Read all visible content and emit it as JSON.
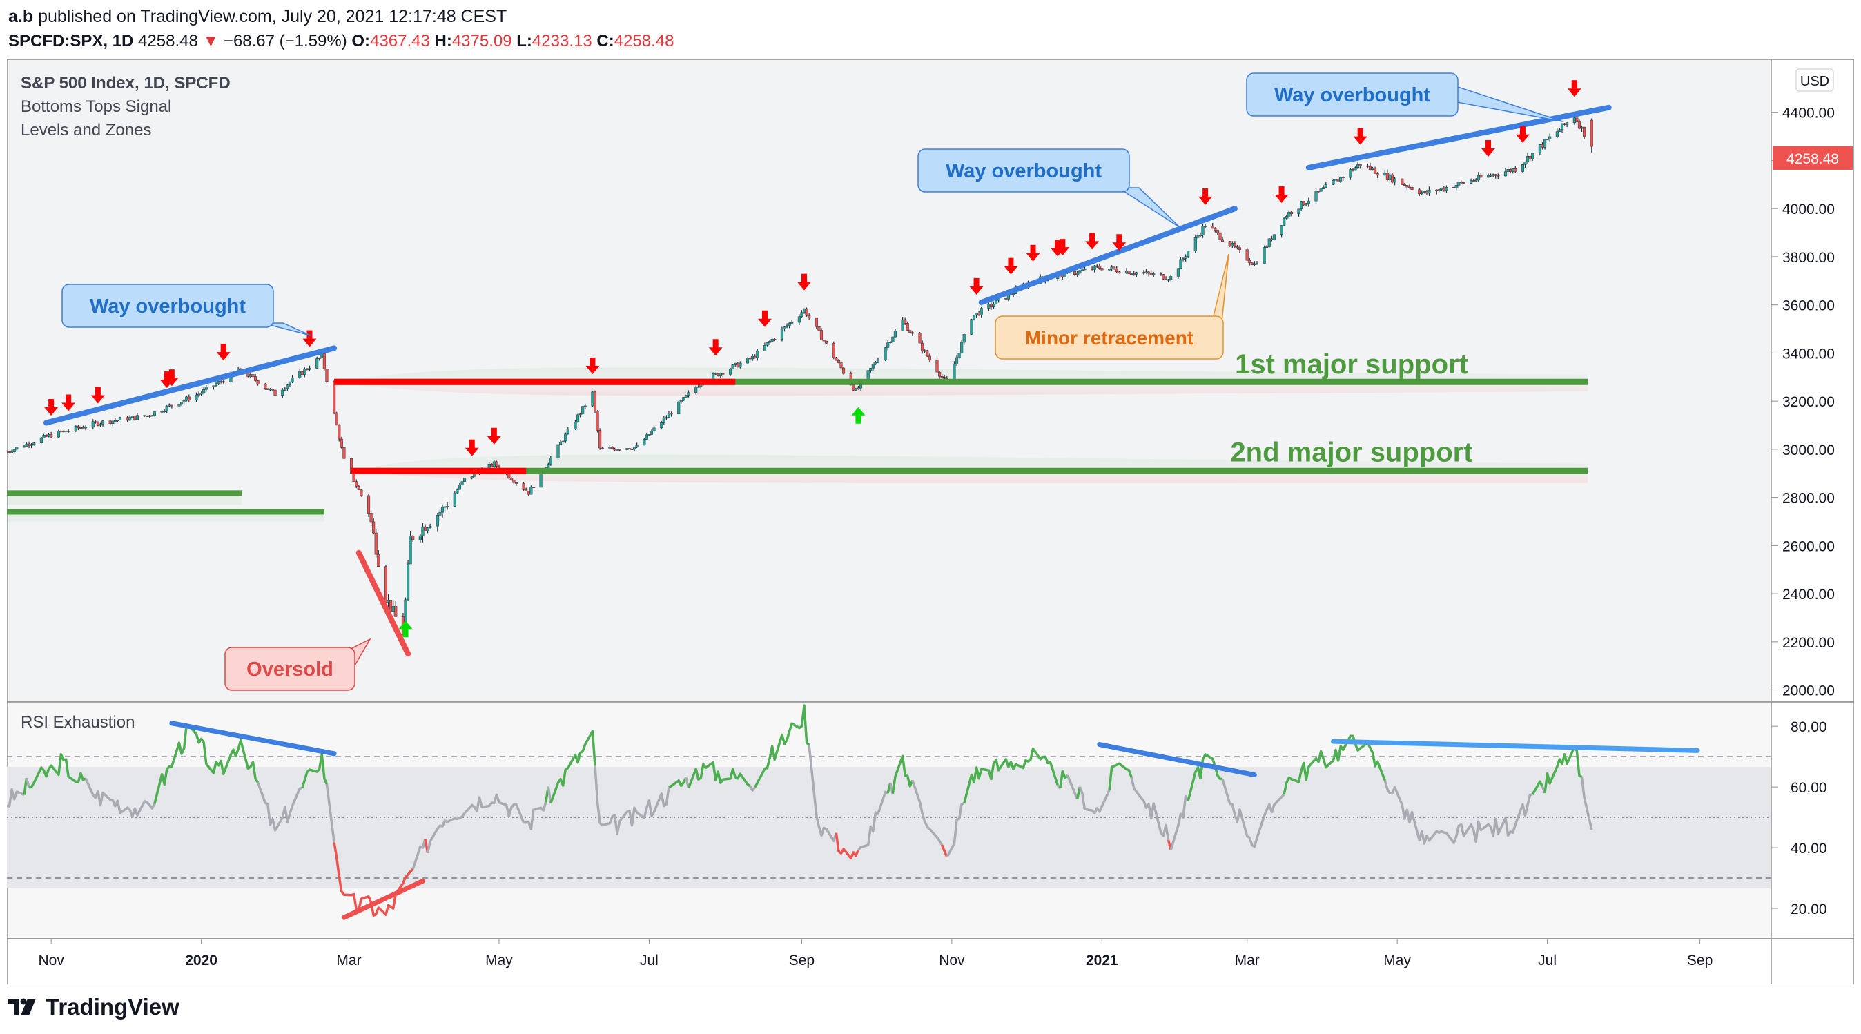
{
  "header": {
    "publisher": "a.b",
    "published_text": "published on TradingView.com, July 20, 2021 12:17:48 CEST",
    "symbol_interval": "SPCFD:SPX, 1D",
    "last_price": "4258.48",
    "change_arrow": "▼",
    "change": "−68.67 (−1.59%)",
    "open_label": "O:",
    "open": "4367.43",
    "high_label": "H:",
    "high": "4375.09",
    "low_label": "L:",
    "low": "4233.13",
    "close_label": "C:",
    "close": "4258.48"
  },
  "legend": {
    "main_title": "S&P 500 Index, 1D, SPCFD",
    "indicators": [
      "Bottoms Tops Signal",
      "Levels and Zones"
    ],
    "rsi_title": "RSI Exhaustion"
  },
  "currency_badge": "USD",
  "last_price_label": "4258.48",
  "footer": {
    "brand": "TradingView"
  },
  "colors": {
    "up": "#26a69a",
    "down": "#ef5350",
    "support": "#4e9a3f",
    "resistance": "#ff0000",
    "overbought_line": "#3c7fe0",
    "oversold_line": "#ef4e4e",
    "rsi_green": "#4caf50",
    "rsi_red": "#ef5350",
    "rsi_grey": "#a9abb2",
    "price_label": "#ef5350"
  },
  "chart_data": [
    {
      "type": "candlestick",
      "title": "S&P 500 Index, 1D, SPCFD",
      "x_ticks": [
        "Nov",
        "2020",
        "Mar",
        "May",
        "Jul",
        "Sep",
        "Nov",
        "2021",
        "Mar",
        "May",
        "Jul",
        "Sep"
      ],
      "y_ticks": [
        2000,
        2200,
        2400,
        2600,
        2800,
        3000,
        3200,
        3400,
        3600,
        3800,
        4000,
        4200,
        4400
      ],
      "ylim": [
        1950,
        4620
      ],
      "x_range": [
        "2019-10-14",
        "2021-09-30"
      ],
      "series": [
        {
          "approx_close": [
            [
              "2019-10-14",
              2990
            ],
            [
              "2019-11-01",
              3060
            ],
            [
              "2019-11-20",
              3110
            ],
            [
              "2019-12-10",
              3140
            ],
            [
              "2019-12-31",
              3230
            ],
            [
              "2020-01-17",
              3330
            ],
            [
              "2020-01-31",
              3230
            ],
            [
              "2020-02-19",
              3386
            ],
            [
              "2020-02-28",
              2954
            ],
            [
              "2020-03-09",
              2746
            ],
            [
              "2020-03-16",
              2386
            ],
            [
              "2020-03-23",
              2237
            ],
            [
              "2020-03-26",
              2630
            ],
            [
              "2020-04-08",
              2750
            ],
            [
              "2020-04-17",
              2875
            ],
            [
              "2020-04-29",
              2940
            ],
            [
              "2020-05-13",
              2820
            ],
            [
              "2020-06-08",
              3232
            ],
            [
              "2020-06-11",
              3000
            ],
            [
              "2020-06-26",
              3010
            ],
            [
              "2020-07-22",
              3280
            ],
            [
              "2020-08-12",
              3380
            ],
            [
              "2020-09-02",
              3580
            ],
            [
              "2020-09-23",
              3240
            ],
            [
              "2020-10-12",
              3535
            ],
            [
              "2020-10-30",
              3270
            ],
            [
              "2020-11-09",
              3550
            ],
            [
              "2020-12-04",
              3700
            ],
            [
              "2020-12-31",
              3756
            ],
            [
              "2021-01-29",
              3714
            ],
            [
              "2021-02-12",
              3935
            ],
            [
              "2021-03-04",
              3768
            ],
            [
              "2021-03-17",
              3975
            ],
            [
              "2021-04-16",
              4185
            ],
            [
              "2021-05-12",
              4063
            ],
            [
              "2021-06-18",
              4166
            ],
            [
              "2021-07-12",
              4384
            ],
            [
              "2021-07-19",
              4258
            ]
          ]
        }
      ],
      "last_candle": {
        "open": 4367.43,
        "high": 4375.09,
        "low": 4233.13,
        "close": 4258.48
      },
      "levels": [
        {
          "name": "1st major support",
          "value": 3280
        },
        {
          "name": "2nd major support",
          "value": 2910
        }
      ],
      "annotations": [
        {
          "text": "Way overbought"
        },
        {
          "text": "Way overbought"
        },
        {
          "text": "Way overbought"
        },
        {
          "text": "Minor retracement"
        },
        {
          "text": "Oversold"
        },
        {
          "text": "1st major support"
        },
        {
          "text": "2nd major support"
        }
      ],
      "sell_signals": [
        "2019-11-01",
        "2019-11-08",
        "2019-11-20",
        "2019-12-18",
        "2019-12-20",
        "2020-01-10",
        "2020-02-14",
        "2020-04-20",
        "2020-04-29",
        "2020-06-08",
        "2020-07-28",
        "2020-08-17",
        "2020-09-02",
        "2020-11-11",
        "2020-11-25",
        "2020-12-04",
        "2020-12-14",
        "2020-12-16",
        "2020-12-28",
        "2021-01-08",
        "2021-02-12",
        "2021-03-15",
        "2021-04-16",
        "2021-06-07",
        "2021-06-21",
        "2021-07-12"
      ],
      "buy_signals": [
        "2020-03-24",
        "2020-09-24"
      ],
      "grid": false
    },
    {
      "type": "line",
      "title": "RSI Exhaustion",
      "y_ticks": [
        20,
        40,
        60,
        80
      ],
      "ylim": [
        10,
        88
      ],
      "bands": [
        30,
        50,
        70
      ],
      "x_ticks": [
        "Nov",
        "2020",
        "Mar",
        "May",
        "Jul",
        "Sep",
        "Nov",
        "2021",
        "Mar",
        "May",
        "Jul",
        "Sep"
      ],
      "series": [
        {
          "approx_values": [
            [
              "2019-10-14",
              55
            ],
            [
              "2019-11-05",
              68
            ],
            [
              "2019-11-20",
              57
            ],
            [
              "2019-12-10",
              52
            ],
            [
              "2019-12-27",
              79
            ],
            [
              "2020-01-08",
              64
            ],
            [
              "2020-01-17",
              76
            ],
            [
              "2020-01-31",
              45
            ],
            [
              "2020-02-19",
              70
            ],
            [
              "2020-02-28",
              22
            ],
            [
              "2020-03-09",
              21
            ],
            [
              "2020-03-16",
              18
            ],
            [
              "2020-03-23",
              27
            ],
            [
              "2020-04-08",
              50
            ],
            [
              "2020-04-29",
              58
            ],
            [
              "2020-05-13",
              48
            ],
            [
              "2020-06-08",
              76
            ],
            [
              "2020-06-11",
              46
            ],
            [
              "2020-06-26",
              50
            ],
            [
              "2020-07-22",
              66
            ],
            [
              "2020-08-12",
              62
            ],
            [
              "2020-09-02",
              84
            ],
            [
              "2020-09-08",
              48
            ],
            [
              "2020-09-23",
              36
            ],
            [
              "2020-10-12",
              67
            ],
            [
              "2020-10-30",
              36
            ],
            [
              "2020-11-09",
              64
            ],
            [
              "2020-12-04",
              70
            ],
            [
              "2020-12-31",
              52
            ],
            [
              "2021-01-08",
              70
            ],
            [
              "2021-01-29",
              42
            ],
            [
              "2021-02-12",
              70
            ],
            [
              "2021-03-04",
              42
            ],
            [
              "2021-03-17",
              62
            ],
            [
              "2021-04-16",
              76
            ],
            [
              "2021-05-12",
              42
            ],
            [
              "2021-06-18",
              48
            ],
            [
              "2021-07-12",
              73
            ],
            [
              "2021-07-19",
              44
            ]
          ]
        }
      ]
    }
  ]
}
